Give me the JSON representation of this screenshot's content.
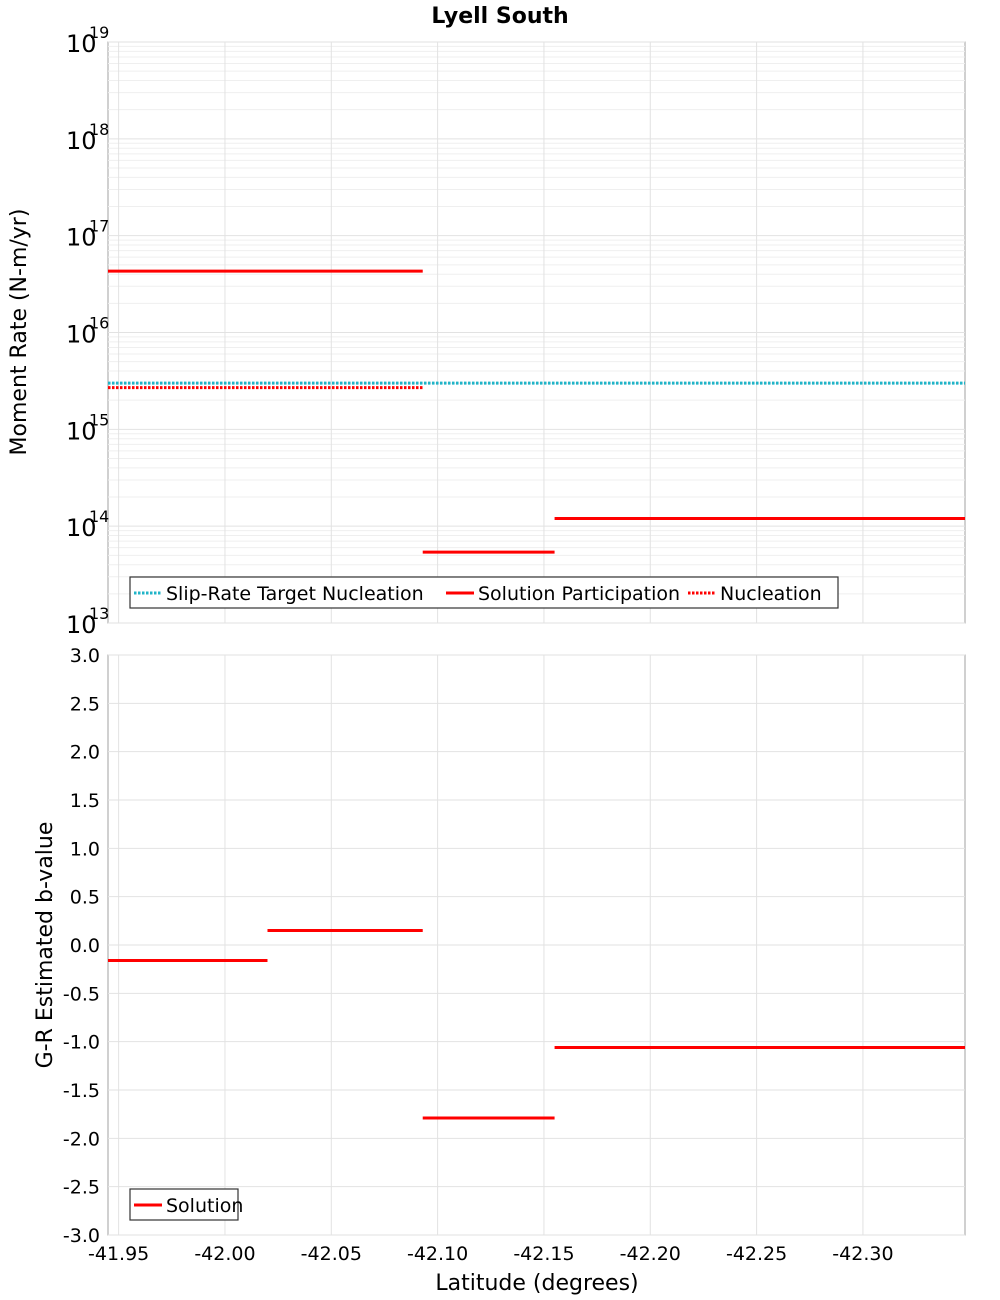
{
  "chart_data": [
    {
      "type": "line",
      "title": "Lyell South",
      "xlabel": "",
      "ylabel": "Moment Rate (N-m/yr)",
      "yscale": "log",
      "ylim_exponents": [
        13,
        19
      ],
      "xlim": [
        -41.945,
        -42.348
      ],
      "x_ticks": [],
      "y_tick_base": "10",
      "y_tick_exponents": [
        "13",
        "14",
        "15",
        "16",
        "17",
        "18",
        "19"
      ],
      "legend_position": "bottom-left",
      "series": [
        {
          "name": "Slip-Rate Target Nucleation",
          "style": "dotted",
          "color": "#20b4c8",
          "segments": [
            {
              "x": [
                -41.945,
                -42.348
              ],
              "y": 3000000000000000.0
            }
          ]
        },
        {
          "name": "Solution Participation",
          "style": "solid",
          "color": "#ff0000",
          "segments": [
            {
              "x": [
                -41.945,
                -42.093
              ],
              "y": 4.3e+16
            },
            {
              "x": [
                -42.093,
                -42.155
              ],
              "y": 54000000000000.0
            },
            {
              "x": [
                -42.155,
                -42.348
              ],
              "y": 120000000000000.0
            }
          ]
        },
        {
          "name": "Nucleation",
          "style": "dotted",
          "color": "#ff0000",
          "segments": [
            {
              "x": [
                -41.945,
                -42.093
              ],
              "y": 2700000000000000.0
            }
          ]
        }
      ]
    },
    {
      "type": "line",
      "title": "",
      "xlabel": "Latitude (degrees)",
      "ylabel": "G-R Estimated b-value",
      "ylim": [
        -3.0,
        3.0
      ],
      "xlim": [
        -41.945,
        -42.348
      ],
      "y_ticks": [
        "3.0",
        "2.5",
        "2.0",
        "1.5",
        "1.0",
        "0.5",
        "0.0",
        "-0.5",
        "-1.0",
        "-1.5",
        "-2.0",
        "-2.5",
        "-3.0"
      ],
      "x_ticks": [
        "-41.95",
        "-42.00",
        "-42.05",
        "-42.10",
        "-42.15",
        "-42.20",
        "-42.25",
        "-42.30"
      ],
      "legend_position": "bottom-left",
      "series": [
        {
          "name": "Solution",
          "style": "solid",
          "color": "#ff0000",
          "segments": [
            {
              "x": [
                -41.945,
                -42.02
              ],
              "y": -0.16
            },
            {
              "x": [
                -42.02,
                -42.093
              ],
              "y": 0.15
            },
            {
              "x": [
                -42.093,
                -42.155
              ],
              "y": -1.79
            },
            {
              "x": [
                -42.155,
                -42.348
              ],
              "y": -1.06
            }
          ]
        }
      ]
    }
  ]
}
